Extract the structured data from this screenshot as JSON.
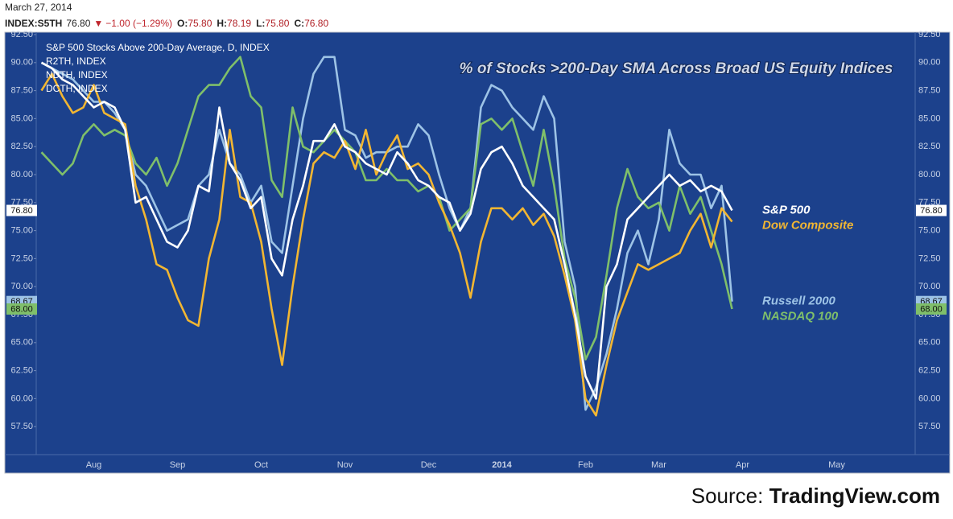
{
  "header": {
    "date": "March 27, 2014",
    "symbol": "INDEX:S5TH",
    "last": "76.80",
    "change": "−1.00 (−1.29%)",
    "ohlc": [
      {
        "label": "O:",
        "value": "75.80"
      },
      {
        "label": "H:",
        "value": "78.19"
      },
      {
        "label": "L:",
        "value": "75.80"
      },
      {
        "label": "C:",
        "value": "76.80"
      }
    ]
  },
  "chart_data": {
    "type": "line",
    "title": "% of Stocks >200-Day SMA Across Broad US Equity Indices",
    "legend_lines": [
      "S&P 500 Stocks Above 200-Day Average, D, INDEX",
      "R2TH, INDEX",
      "NDTH, INDEX",
      "DCTH, INDEX"
    ],
    "categories": [
      null,
      null,
      null,
      null,
      null,
      "Aug",
      null,
      null,
      null,
      null,
      null,
      null,
      null,
      "Sep",
      null,
      null,
      null,
      null,
      null,
      null,
      null,
      "Oct",
      null,
      null,
      null,
      null,
      null,
      null,
      null,
      "Nov",
      null,
      null,
      null,
      null,
      null,
      null,
      null,
      "Dec",
      null,
      null,
      null,
      null,
      null,
      null,
      "2014",
      null,
      null,
      null,
      null,
      null,
      null,
      null,
      "Feb",
      null,
      null,
      null,
      null,
      null,
      null,
      "Mar",
      null,
      null,
      null,
      null,
      null,
      null,
      null,
      "Apr",
      null,
      null,
      null,
      null,
      null,
      null,
      null,
      null,
      "May",
      null,
      null,
      null,
      null,
      null,
      null,
      null
    ],
    "ylim": [
      55,
      92.5
    ],
    "yticks": [
      {
        "value": 57.5,
        "label": "57.50"
      },
      {
        "value": 60,
        "label": "60.00"
      },
      {
        "value": 62.5,
        "label": "62.50"
      },
      {
        "value": 65,
        "label": "65.00"
      },
      {
        "value": 67.5,
        "label": "67.50"
      },
      {
        "value": 70,
        "label": "70.00"
      },
      {
        "value": 72.5,
        "label": "72.50"
      },
      {
        "value": 75,
        "label": "75.00"
      },
      {
        "value": 77.5,
        "label": "77.50"
      },
      {
        "value": 80,
        "label": "80.00"
      },
      {
        "value": 82.5,
        "label": "82.50"
      },
      {
        "value": 85,
        "label": "85.00"
      },
      {
        "value": 87.5,
        "label": "87.50"
      },
      {
        "value": 90,
        "label": "90.00"
      },
      {
        "value": 92.5,
        "label": "92.50"
      }
    ],
    "grid": false,
    "series": [
      {
        "name": "Russell 2000",
        "color": "#9dc3e6",
        "last_label": "68.67",
        "values": [
          90,
          89.5,
          89,
          88.5,
          87.5,
          86.5,
          86.5,
          85.5,
          84,
          80,
          79,
          77,
          75,
          75.5,
          76,
          79,
          80,
          84,
          81,
          80,
          77.5,
          79,
          74,
          73,
          79,
          85,
          89,
          90.5,
          90.5,
          84,
          83.5,
          81.5,
          82,
          82,
          82.5,
          82.5,
          84.5,
          83.5,
          80,
          77,
          75,
          77,
          86,
          88,
          87.5,
          86,
          85,
          84,
          87,
          85,
          74,
          70,
          59,
          61,
          64,
          68,
          73,
          75,
          72,
          76,
          84,
          81,
          80,
          80,
          77,
          79,
          68.67,
          null,
          null,
          null,
          null,
          null,
          null,
          null,
          null,
          null,
          null,
          null,
          null,
          null,
          null,
          null,
          null,
          null
        ]
      },
      {
        "name": "NASDAQ 100",
        "color": "#7fbf6a",
        "last_label": "68.00",
        "values": [
          82,
          81,
          80,
          81,
          83.5,
          84.5,
          83.5,
          84,
          83.5,
          81,
          80,
          81.5,
          79,
          81,
          84,
          87,
          88,
          88,
          89.5,
          90.5,
          87,
          86,
          79.5,
          78,
          86,
          82.5,
          82,
          83,
          84,
          83,
          82,
          79.5,
          79.5,
          80.5,
          79.5,
          79.5,
          78.5,
          79,
          78,
          75,
          76,
          77,
          84.5,
          85,
          84,
          85,
          82,
          79,
          84,
          79,
          72.5,
          69,
          63.5,
          65.5,
          71,
          77,
          80.5,
          78,
          77,
          77.5,
          75,
          79,
          76.5,
          78,
          75,
          72,
          68,
          null,
          null,
          null,
          null,
          null,
          null,
          null,
          null,
          null,
          null,
          null,
          null,
          null,
          null,
          null,
          null,
          null
        ]
      },
      {
        "name": "Dow Composite",
        "color": "#f2b632",
        "values": [
          87.5,
          89,
          87,
          85.5,
          86,
          88,
          85.5,
          85,
          84.5,
          79,
          76,
          72,
          71.5,
          69,
          67,
          66.5,
          72.5,
          76,
          84,
          78,
          77.5,
          74,
          68,
          63,
          70,
          76,
          81,
          82,
          81.5,
          83,
          80.5,
          84,
          80,
          82,
          83.5,
          80.5,
          81,
          80,
          77.5,
          75.5,
          73,
          69,
          74,
          77,
          77,
          76,
          77,
          75.5,
          76.5,
          74.5,
          71,
          67,
          60,
          58.5,
          63,
          67,
          69.5,
          72,
          71.5,
          72,
          72.5,
          73,
          75,
          76.5,
          73.5,
          77,
          75.8,
          null,
          null,
          null,
          null,
          null,
          null,
          null,
          null,
          null,
          null,
          null,
          null,
          null,
          null,
          null,
          null,
          null
        ]
      },
      {
        "name": "S&P 500",
        "color": "#ffffff",
        "last_label": "76.80",
        "values": [
          90,
          89.5,
          88.5,
          88,
          87,
          86,
          86.5,
          86,
          84,
          77.5,
          78,
          76,
          74,
          73.5,
          75,
          79,
          78.5,
          86,
          81,
          79.5,
          77,
          78,
          72.5,
          71,
          76,
          79,
          83,
          83,
          84.5,
          82.5,
          82,
          81,
          80.5,
          80,
          82,
          81,
          79.5,
          79,
          78,
          77.5,
          75,
          76.5,
          80.5,
          82,
          82.5,
          81,
          79,
          78,
          77,
          76,
          72,
          67.5,
          62,
          60,
          70,
          72,
          76,
          77,
          78,
          79,
          80,
          79,
          79.5,
          78.5,
          79,
          78.5,
          76.8,
          null,
          null,
          null,
          null,
          null,
          null,
          null,
          null,
          null,
          null,
          null,
          null,
          null,
          null,
          null,
          null,
          null
        ]
      }
    ]
  },
  "source": {
    "label": "Source:",
    "name": "TradingView.com"
  }
}
